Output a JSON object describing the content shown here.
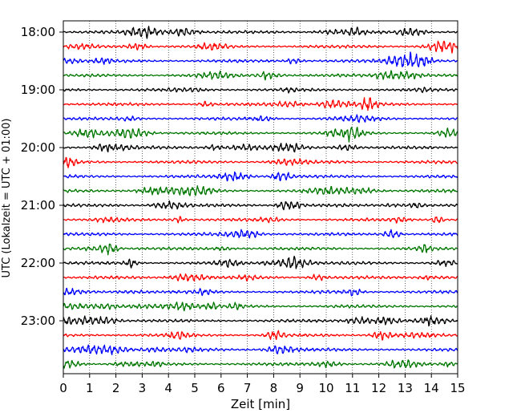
{
  "chart_data": {
    "type": "line",
    "title": "",
    "xlabel": "Zeit  [min]",
    "ylabel": "UTC (Lokalzeit = UTC + 01:00)",
    "xlim": [
      0,
      15
    ],
    "x_ticks": [
      0,
      1,
      2,
      3,
      4,
      5,
      6,
      7,
      8,
      9,
      10,
      11,
      12,
      13,
      14,
      15
    ],
    "y_tick_labels": [
      "18:00",
      "19:00",
      "20:00",
      "21:00",
      "22:00",
      "23:00"
    ],
    "grid": "vertical dotted lines at each minute",
    "trace_interval_min": 15,
    "first_trace": "18:00",
    "trace_count": 24,
    "color_cycle": [
      "#000000",
      "#ff0000",
      "#0000ff",
      "#007700"
    ]
  }
}
